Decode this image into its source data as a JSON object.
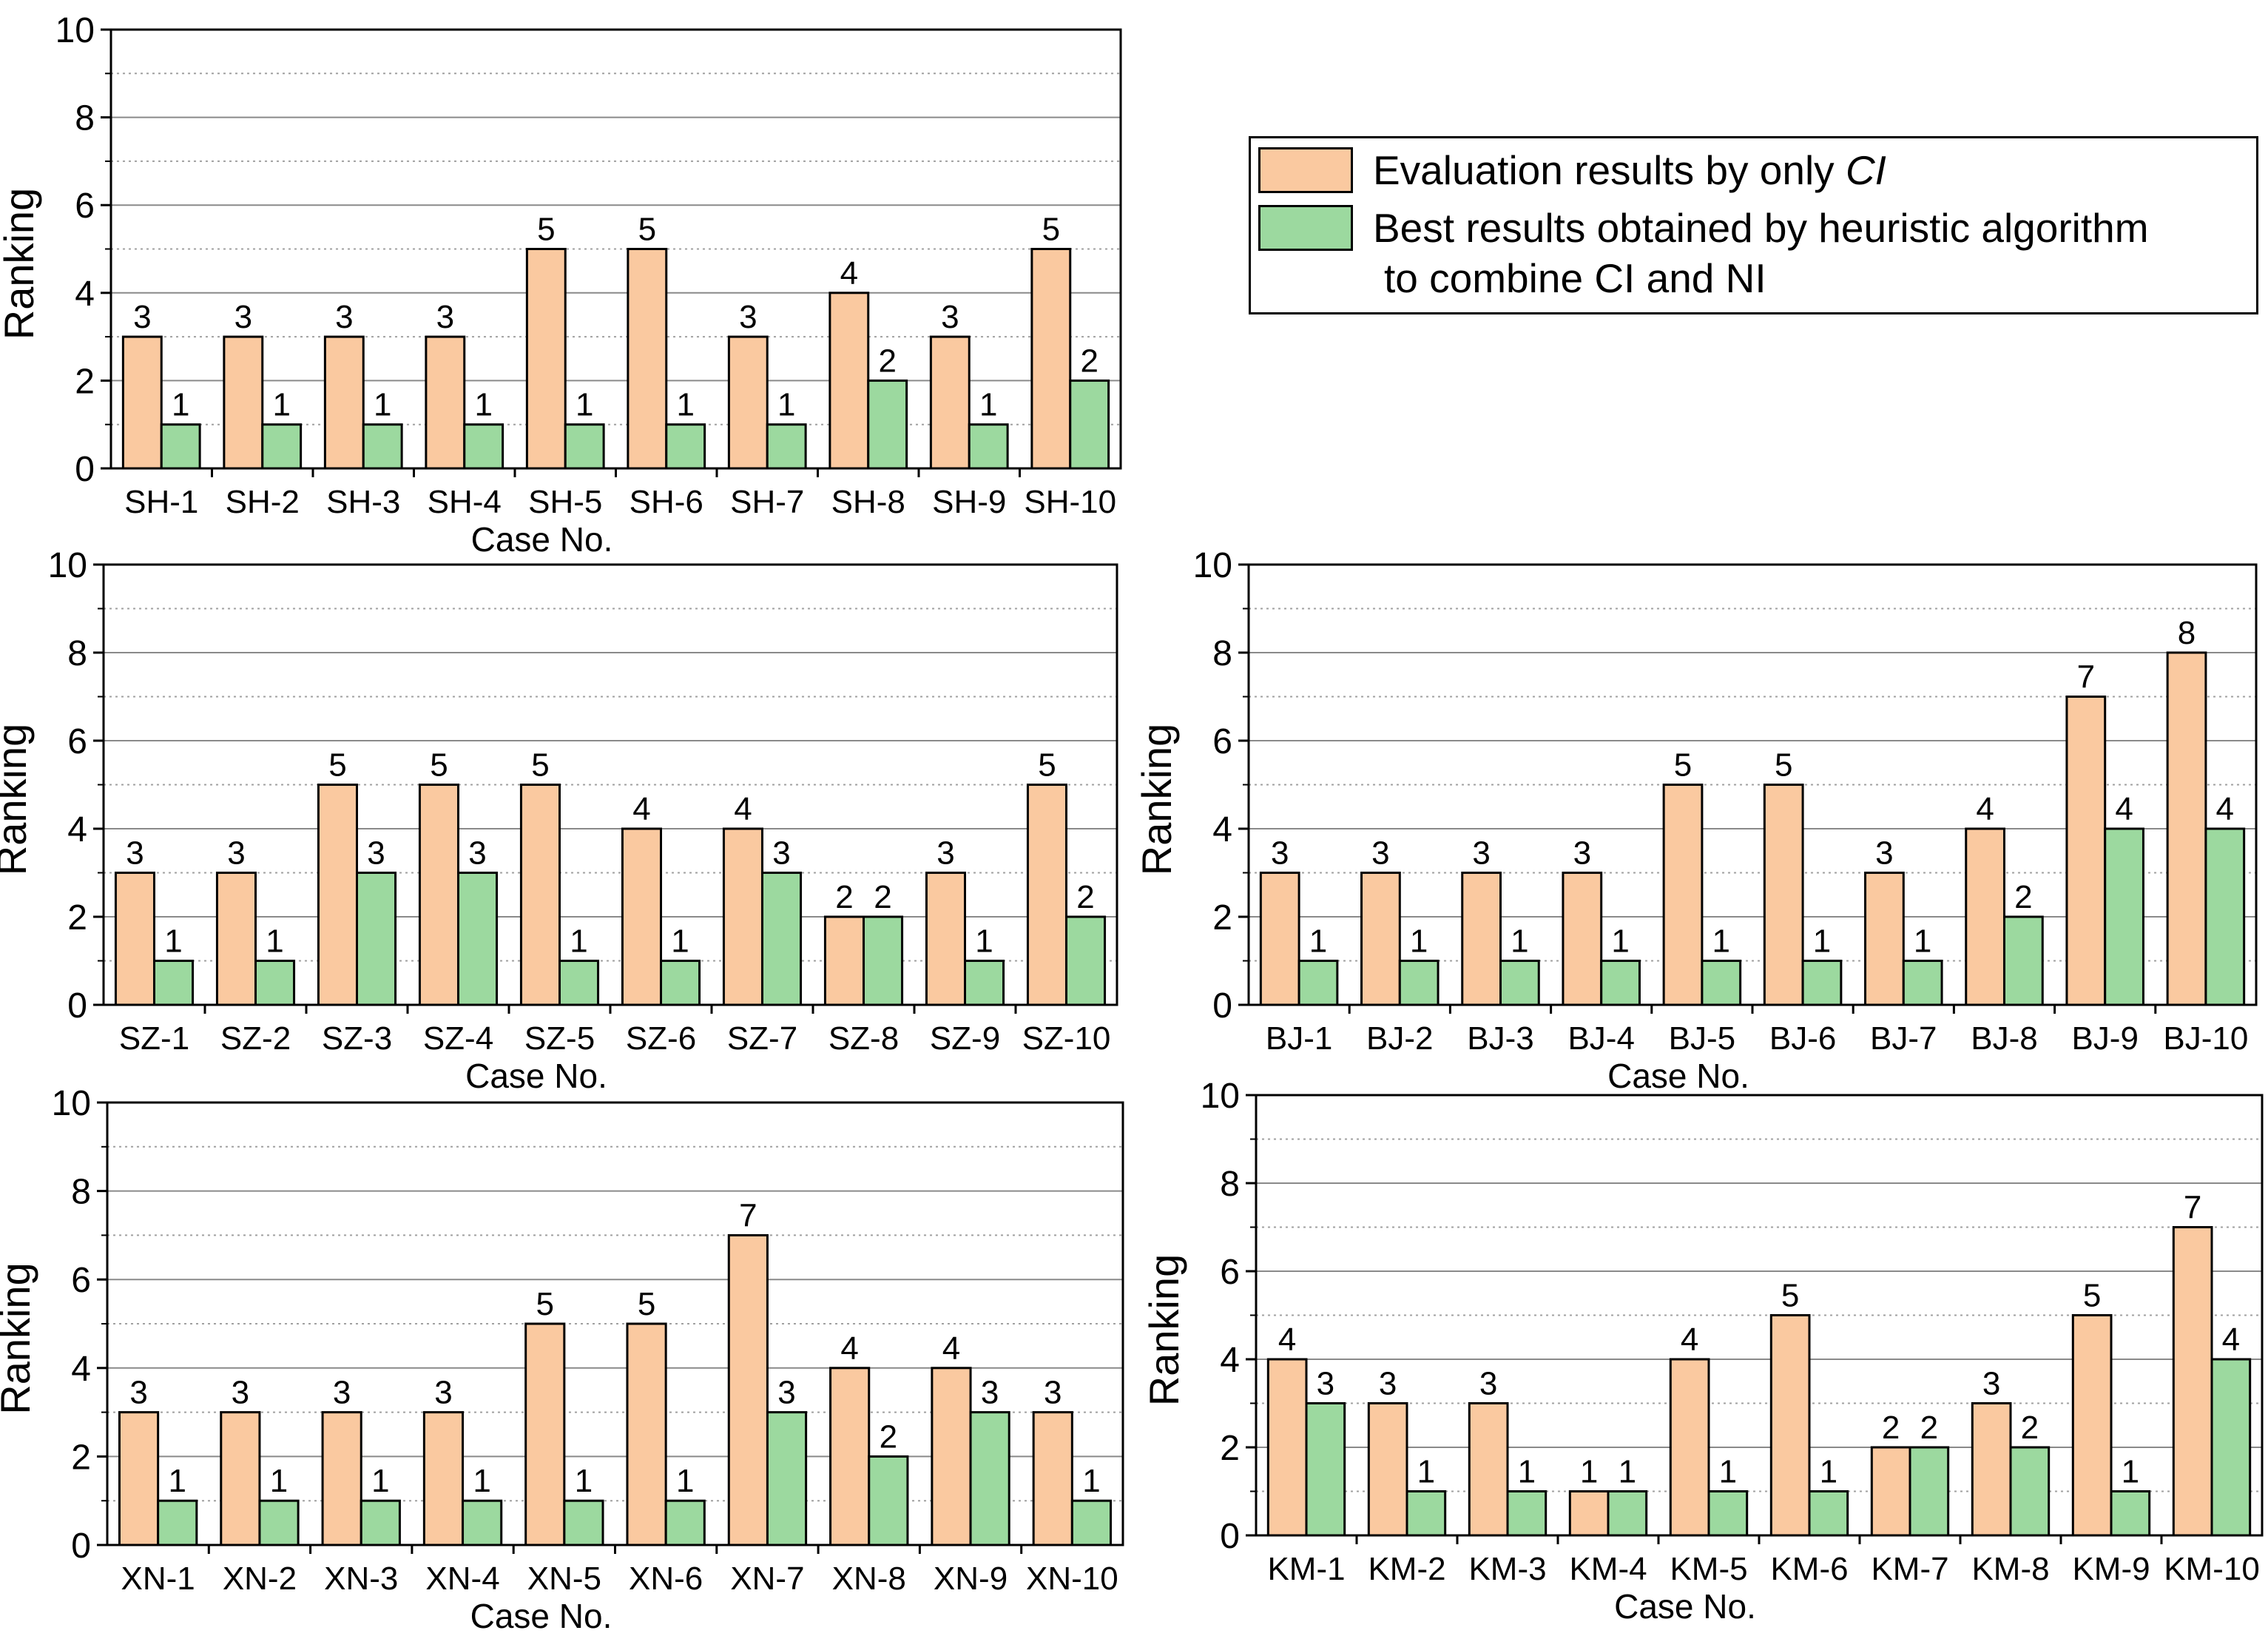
{
  "colors": {
    "ci": "#FAC9A0",
    "best": "#9CD99F",
    "grid_major": "#8a8a8a",
    "grid_minor": "#a0a0a0",
    "axis": "#000000"
  },
  "legend": {
    "ci_label_prefix": "Evaluation results by only ",
    "ci_label_em": "CI",
    "best_label_line1": "Best results obtained by heuristic algorithm",
    "best_label_line2_prefix": "to combine ",
    "best_label_line2_em1": "CI",
    "best_label_line2_mid": " and ",
    "best_label_line2_em2": "NI"
  },
  "chart_data": [
    {
      "type": "bar",
      "id": "SH",
      "xlabel": "Case No.",
      "ylabel": "Ranking",
      "ylim": [
        0,
        10
      ],
      "yticks": [
        0,
        2,
        4,
        6,
        8,
        10
      ],
      "categories": [
        "SH-1",
        "SH-2",
        "SH-3",
        "SH-4",
        "SH-5",
        "SH-6",
        "SH-7",
        "SH-8",
        "SH-9",
        "SH-10"
      ],
      "series": [
        {
          "name": "Evaluation results by only CI",
          "values": [
            3,
            3,
            3,
            3,
            5,
            5,
            3,
            4,
            3,
            5
          ]
        },
        {
          "name": "Best results obtained by heuristic algorithm to combine CI and NI",
          "values": [
            1,
            1,
            1,
            1,
            1,
            1,
            1,
            2,
            1,
            2
          ]
        }
      ]
    },
    {
      "type": "bar",
      "id": "SZ",
      "xlabel": "Case No.",
      "ylabel": "Ranking",
      "ylim": [
        0,
        10
      ],
      "yticks": [
        0,
        2,
        4,
        6,
        8,
        10
      ],
      "categories": [
        "SZ-1",
        "SZ-2",
        "SZ-3",
        "SZ-4",
        "SZ-5",
        "SZ-6",
        "SZ-7",
        "SZ-8",
        "SZ-9",
        "SZ-10"
      ],
      "series": [
        {
          "name": "Evaluation results by only CI",
          "values": [
            3,
            3,
            5,
            5,
            5,
            4,
            4,
            2,
            3,
            5
          ]
        },
        {
          "name": "Best results obtained by heuristic algorithm to combine CI and NI",
          "values": [
            1,
            1,
            3,
            3,
            1,
            1,
            3,
            2,
            1,
            2
          ]
        }
      ]
    },
    {
      "type": "bar",
      "id": "BJ",
      "xlabel": "Case No.",
      "ylabel": "Ranking",
      "ylim": [
        0,
        10
      ],
      "yticks": [
        0,
        2,
        4,
        6,
        8,
        10
      ],
      "categories": [
        "BJ-1",
        "BJ-2",
        "BJ-3",
        "BJ-4",
        "BJ-5",
        "BJ-6",
        "BJ-7",
        "BJ-8",
        "BJ-9",
        "BJ-10"
      ],
      "series": [
        {
          "name": "Evaluation results by only CI",
          "values": [
            3,
            3,
            3,
            3,
            5,
            5,
            3,
            4,
            7,
            8
          ]
        },
        {
          "name": "Best results obtained by heuristic algorithm to combine CI and NI",
          "values": [
            1,
            1,
            1,
            1,
            1,
            1,
            1,
            2,
            4,
            4
          ]
        }
      ]
    },
    {
      "type": "bar",
      "id": "XN",
      "xlabel": "Case No.",
      "ylabel": "Ranking",
      "ylim": [
        0,
        10
      ],
      "yticks": [
        0,
        2,
        4,
        6,
        8,
        10
      ],
      "categories": [
        "XN-1",
        "XN-2",
        "XN-3",
        "XN-4",
        "XN-5",
        "XN-6",
        "XN-7",
        "XN-8",
        "XN-9",
        "XN-10"
      ],
      "series": [
        {
          "name": "Evaluation results by only CI",
          "values": [
            3,
            3,
            3,
            3,
            5,
            5,
            7,
            4,
            4,
            3
          ]
        },
        {
          "name": "Best results obtained by heuristic algorithm to combine CI and NI",
          "values": [
            1,
            1,
            1,
            1,
            1,
            1,
            3,
            2,
            3,
            1
          ]
        }
      ]
    },
    {
      "type": "bar",
      "id": "KM",
      "xlabel": "Case No.",
      "ylabel": "Ranking",
      "ylim": [
        0,
        10
      ],
      "yticks": [
        0,
        2,
        4,
        6,
        8,
        10
      ],
      "categories": [
        "KM-1",
        "KM-2",
        "KM-3",
        "KM-4",
        "KM-5",
        "KM-6",
        "KM-7",
        "KM-8",
        "KM-9",
        "KM-10"
      ],
      "series": [
        {
          "name": "Evaluation results by only CI",
          "values": [
            4,
            3,
            3,
            1,
            4,
            5,
            2,
            3,
            5,
            7
          ]
        },
        {
          "name": "Best results obtained by heuristic algorithm to combine CI and NI",
          "values": [
            3,
            1,
            1,
            1,
            1,
            1,
            2,
            2,
            1,
            4
          ]
        }
      ]
    }
  ]
}
